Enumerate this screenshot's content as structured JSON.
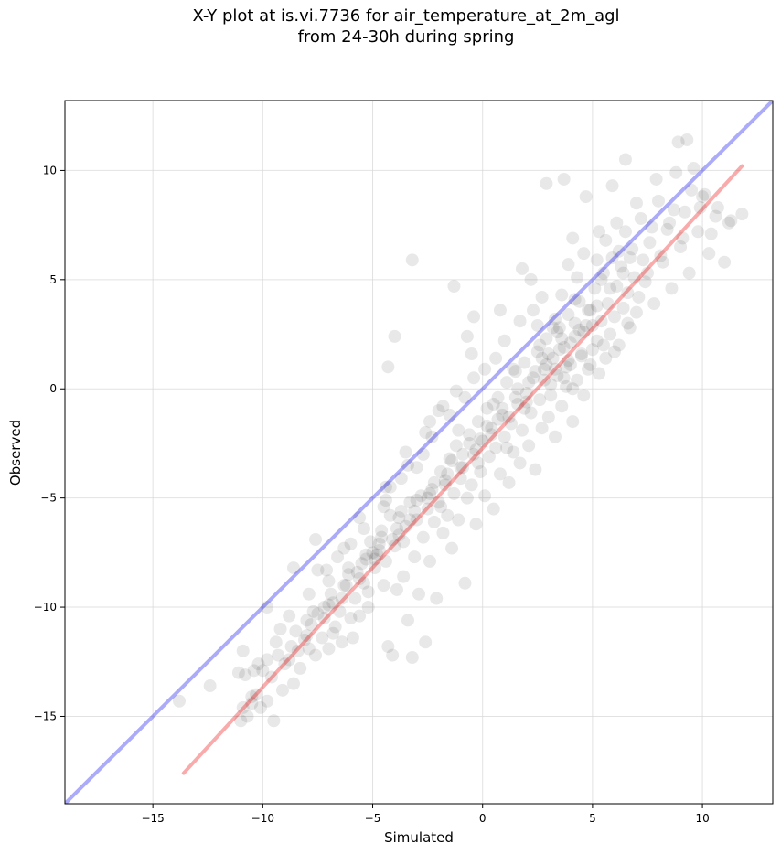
{
  "figure": {
    "title_line1": "X-Y plot at is.vi.7736 for air_temperature_at_2m_agl",
    "title_line2": "from 24-30h during spring"
  },
  "chart_data": {
    "type": "scatter",
    "title": "X-Y plot at is.vi.7736 for air_temperature_at_2m_agl\nfrom 24-30h during spring",
    "xlabel": "Simulated",
    "ylabel": "Observed",
    "xlim": [
      -19.0,
      13.2
    ],
    "ylim": [
      -19.0,
      13.2
    ],
    "xticks": [
      -15,
      -10,
      -5,
      0,
      5,
      10
    ],
    "yticks": [
      -15,
      -10,
      -5,
      0,
      5,
      10
    ],
    "xtick_labels": [
      "−15",
      "−10",
      "−5",
      "0",
      "5",
      "10"
    ],
    "ytick_labels": [
      "−15",
      "−10",
      "−5",
      "0",
      "5",
      "10"
    ],
    "grid": true,
    "colors": {
      "points": "#000000",
      "one_to_one": "#0000ee",
      "fit": "#ee0000"
    },
    "one_to_one_line": {
      "x": [
        -19.0,
        13.2
      ],
      "y": [
        -19.0,
        13.2
      ]
    },
    "fit_line": {
      "x": [
        -13.6,
        11.8
      ],
      "y": [
        -17.6,
        10.2
      ]
    },
    "points": [
      [
        -13.8,
        -14.3
      ],
      [
        -12.4,
        -13.6
      ],
      [
        -11.1,
        -13.0
      ],
      [
        -11.0,
        -15.2
      ],
      [
        -10.9,
        -14.6
      ],
      [
        -10.8,
        -13.1
      ],
      [
        -10.7,
        -15.0
      ],
      [
        -10.5,
        -14.4
      ],
      [
        -10.4,
        -12.9
      ],
      [
        -10.3,
        -14.0
      ],
      [
        -10.1,
        -14.6
      ],
      [
        -9.8,
        -14.3
      ],
      [
        -9.8,
        -12.4
      ],
      [
        -9.5,
        -15.2
      ],
      [
        -9.3,
        -12.2
      ],
      [
        -9.1,
        -13.8
      ],
      [
        -9.0,
        -12.6
      ],
      [
        -8.6,
        -13.5
      ],
      [
        -8.7,
        -11.8
      ],
      [
        -8.4,
        -12.0
      ],
      [
        -8.1,
        -11.5
      ],
      [
        -8.0,
        -10.6
      ],
      [
        -7.9,
        -11.9
      ],
      [
        -7.6,
        -12.2
      ],
      [
        -7.5,
        -10.3
      ],
      [
        -7.3,
        -11.4
      ],
      [
        -7.2,
        -10.0
      ],
      [
        -7.0,
        -11.9
      ],
      [
        -7.0,
        -8.8
      ],
      [
        -6.8,
        -9.8
      ],
      [
        -6.7,
        -10.9
      ],
      [
        -6.5,
        -10.2
      ],
      [
        -6.4,
        -11.6
      ],
      [
        -6.3,
        -9.0
      ],
      [
        -6.1,
        -8.2
      ],
      [
        -6.0,
        -10.5
      ],
      [
        -5.9,
        -11.4
      ],
      [
        -5.8,
        -9.6
      ],
      [
        -5.7,
        -8.4
      ],
      [
        -5.6,
        -10.4
      ],
      [
        -5.4,
        -8.9
      ],
      [
        -5.3,
        -7.8
      ],
      [
        -5.2,
        -10.0
      ],
      [
        -5.1,
        -7.0
      ],
      [
        -5.0,
        -7.5
      ],
      [
        -4.9,
        -8.2
      ],
      [
        -4.8,
        -7.6
      ],
      [
        -4.7,
        -7.4
      ],
      [
        -4.6,
        -6.5
      ],
      [
        -4.5,
        -9.0
      ],
      [
        -4.4,
        -7.9
      ],
      [
        -4.3,
        -11.8
      ],
      [
        -4.2,
        -5.8
      ],
      [
        -4.1,
        -12.2
      ],
      [
        -4.0,
        -7.2
      ],
      [
        -3.9,
        -9.2
      ],
      [
        -3.8,
        -6.7
      ],
      [
        -3.7,
        -5.6
      ],
      [
        -3.6,
        -8.6
      ],
      [
        -3.5,
        -6.3
      ],
      [
        -3.4,
        -10.6
      ],
      [
        -3.3,
        -5.2
      ],
      [
        -3.2,
        -12.3
      ],
      [
        -3.1,
        -7.7
      ],
      [
        -3.0,
        -6.0
      ],
      [
        -2.9,
        -9.4
      ],
      [
        -2.8,
        -4.9
      ],
      [
        -2.7,
        -6.8
      ],
      [
        -2.6,
        -11.6
      ],
      [
        -2.5,
        -5.5
      ],
      [
        -2.4,
        -7.9
      ],
      [
        -2.3,
        -4.6
      ],
      [
        -2.2,
        -6.1
      ],
      [
        -2.1,
        -9.6
      ],
      [
        -2.0,
        -5.2
      ],
      [
        -1.9,
        -3.8
      ],
      [
        -1.8,
        -6.6
      ],
      [
        -1.7,
        -4.4
      ],
      [
        -1.6,
        -5.8
      ],
      [
        -1.5,
        -3.2
      ],
      [
        -1.4,
        -7.3
      ],
      [
        -1.3,
        -4.8
      ],
      [
        -1.2,
        -2.6
      ],
      [
        -1.1,
        -6.0
      ],
      [
        -1.0,
        -4.1
      ],
      [
        -0.9,
        -3.6
      ],
      [
        -0.8,
        -8.9
      ],
      [
        -0.7,
        -5.0
      ],
      [
        -0.6,
        -2.1
      ],
      [
        -0.5,
        -4.4
      ],
      [
        -0.4,
        -3.0
      ],
      [
        -0.3,
        -6.2
      ],
      [
        -0.2,
        -1.5
      ],
      [
        -0.1,
        -3.8
      ],
      [
        0.0,
        -2.4
      ],
      [
        0.1,
        -4.9
      ],
      [
        0.2,
        -0.9
      ],
      [
        0.3,
        -3.1
      ],
      [
        0.4,
        -1.8
      ],
      [
        0.5,
        -5.5
      ],
      [
        0.6,
        -2.7
      ],
      [
        0.7,
        -0.4
      ],
      [
        0.8,
        -3.9
      ],
      [
        0.9,
        -1.2
      ],
      [
        1.0,
        -2.2
      ],
      [
        1.1,
        0.3
      ],
      [
        1.2,
        -4.3
      ],
      [
        1.3,
        -1.6
      ],
      [
        1.4,
        -2.9
      ],
      [
        1.5,
        0.8
      ],
      [
        1.6,
        -0.7
      ],
      [
        1.7,
        -3.4
      ],
      [
        1.8,
        -1.9
      ],
      [
        1.9,
        1.2
      ],
      [
        2.0,
        -0.2
      ],
      [
        2.1,
        -2.6
      ],
      [
        2.2,
        -1.1
      ],
      [
        2.3,
        0.5
      ],
      [
        2.4,
        -3.7
      ],
      [
        2.5,
        1.7
      ],
      [
        2.6,
        -0.5
      ],
      [
        2.7,
        -1.8
      ],
      [
        2.8,
        0.9
      ],
      [
        2.9,
        2.3
      ],
      [
        3.0,
        -1.3
      ],
      [
        3.1,
        0.2
      ],
      [
        3.2,
        1.4
      ],
      [
        3.3,
        -2.2
      ],
      [
        3.4,
        0.6
      ],
      [
        3.5,
        2.8
      ],
      [
        3.6,
        -0.8
      ],
      [
        3.7,
        1.9
      ],
      [
        3.8,
        0.1
      ],
      [
        3.9,
        3.4
      ],
      [
        4.0,
        1.1
      ],
      [
        4.1,
        -1.5
      ],
      [
        4.2,
        2.4
      ],
      [
        4.3,
        0.4
      ],
      [
        4.4,
        4.0
      ],
      [
        4.5,
        1.6
      ],
      [
        4.6,
        -0.3
      ],
      [
        4.7,
        2.9
      ],
      [
        4.8,
        0.9
      ],
      [
        4.9,
        3.6
      ],
      [
        5.0,
        1.8
      ],
      [
        5.1,
        4.6
      ],
      [
        5.2,
        2.2
      ],
      [
        5.3,
        0.7
      ],
      [
        5.4,
        3.1
      ],
      [
        5.5,
        5.3
      ],
      [
        5.6,
        1.4
      ],
      [
        5.7,
        3.9
      ],
      [
        5.8,
        2.5
      ],
      [
        5.9,
        6.0
      ],
      [
        6.0,
        3.3
      ],
      [
        6.1,
        4.7
      ],
      [
        6.2,
        2.0
      ],
      [
        6.3,
        5.6
      ],
      [
        6.4,
        3.7
      ],
      [
        6.5,
        7.2
      ],
      [
        6.6,
        4.4
      ],
      [
        6.7,
        2.8
      ],
      [
        6.8,
        6.4
      ],
      [
        6.9,
        5.1
      ],
      [
        7.0,
        3.5
      ],
      [
        7.2,
        7.8
      ],
      [
        7.4,
        4.9
      ],
      [
        7.6,
        6.7
      ],
      [
        7.8,
        3.9
      ],
      [
        8.0,
        8.6
      ],
      [
        8.2,
        5.8
      ],
      [
        8.4,
        7.3
      ],
      [
        8.6,
        4.6
      ],
      [
        8.8,
        9.9
      ],
      [
        9.0,
        6.5
      ],
      [
        9.2,
        8.1
      ],
      [
        9.4,
        5.3
      ],
      [
        9.6,
        10.1
      ],
      [
        9.8,
        7.2
      ],
      [
        10.0,
        8.8
      ],
      [
        10.3,
        6.2
      ],
      [
        10.6,
        7.9
      ],
      [
        11.0,
        5.8
      ],
      [
        11.3,
        7.7
      ],
      [
        11.8,
        8.0
      ],
      [
        -6.6,
        -7.7
      ],
      [
        -3.2,
        5.9
      ],
      [
        -4.0,
        2.4
      ],
      [
        -4.3,
        1.0
      ],
      [
        -1.3,
        4.7
      ],
      [
        -0.7,
        2.4
      ],
      [
        -0.4,
        3.3
      ],
      [
        1.8,
        5.5
      ],
      [
        2.9,
        9.4
      ],
      [
        3.7,
        9.6
      ],
      [
        4.7,
        8.8
      ],
      [
        6.5,
        10.5
      ],
      [
        8.9,
        11.3
      ],
      [
        9.3,
        11.4
      ],
      [
        10.7,
        8.3
      ],
      [
        7.7,
        7.4
      ],
      [
        5.9,
        9.3
      ],
      [
        4.1,
        6.9
      ],
      [
        2.2,
        5.0
      ],
      [
        0.8,
        3.6
      ],
      [
        -0.5,
        1.6
      ],
      [
        -1.8,
        -0.8
      ],
      [
        -2.4,
        -1.5
      ],
      [
        -3.5,
        -2.9
      ],
      [
        -4.4,
        -4.5
      ],
      [
        -5.6,
        -5.9
      ],
      [
        -7.6,
        -6.9
      ],
      [
        -8.6,
        -8.2
      ],
      [
        -9.8,
        -10.0
      ],
      [
        -10.9,
        -12.0
      ],
      [
        1.4,
        0.9
      ],
      [
        2.6,
        2.0
      ],
      [
        3.3,
        3.2
      ],
      [
        4.2,
        4.1
      ],
      [
        5.4,
        5.0
      ],
      [
        6.2,
        6.3
      ],
      [
        7.3,
        5.9
      ],
      [
        3.9,
        1.3
      ],
      [
        2.8,
        0.4
      ],
      [
        3.5,
        1.8
      ],
      [
        4.4,
        2.7
      ],
      [
        2.0,
        -0.6
      ],
      [
        1.2,
        -1.3
      ],
      [
        0.4,
        -2.1
      ],
      [
        -0.3,
        -2.8
      ],
      [
        -1.0,
        -3.6
      ],
      [
        -1.7,
        -4.2
      ],
      [
        -2.5,
        -5.0
      ],
      [
        -3.3,
        -6.0
      ],
      [
        -4.1,
        -6.9
      ],
      [
        -4.9,
        -7.8
      ],
      [
        -5.6,
        -8.7
      ],
      [
        -6.4,
        -9.6
      ],
      [
        -7.2,
        -10.5
      ],
      [
        -8.0,
        -11.3
      ],
      [
        -8.8,
        -12.4
      ],
      [
        -9.6,
        -13.2
      ],
      [
        -10.5,
        -14.1
      ],
      [
        3.0,
        1.6
      ],
      [
        3.6,
        2.3
      ],
      [
        4.2,
        3.0
      ],
      [
        4.8,
        3.6
      ],
      [
        2.4,
        0.8
      ],
      [
        1.6,
        0.0
      ],
      [
        0.9,
        -0.9
      ],
      [
        0.2,
        -1.7
      ],
      [
        -0.6,
        -2.5
      ],
      [
        -1.4,
        -3.3
      ],
      [
        -2.2,
        -4.3
      ],
      [
        -3.0,
        -5.1
      ],
      [
        -3.8,
        -5.9
      ],
      [
        -4.6,
        -6.8
      ],
      [
        -5.3,
        -7.6
      ],
      [
        -6.1,
        -8.5
      ],
      [
        -6.9,
        -9.4
      ],
      [
        -7.7,
        -10.2
      ],
      [
        -8.5,
        -11.1
      ],
      [
        3.3,
        0.9
      ],
      [
        4.0,
        2.1
      ],
      [
        4.6,
        2.6
      ],
      [
        5.2,
        3.8
      ],
      [
        5.8,
        4.6
      ],
      [
        6.4,
        5.3
      ],
      [
        2.7,
        1.4
      ],
      [
        2.1,
        0.3
      ],
      [
        1.5,
        -0.4
      ],
      [
        0.7,
        -1.4
      ],
      [
        -0.1,
        -2.3
      ],
      [
        -0.9,
        -3.0
      ],
      [
        -1.6,
        -3.9
      ],
      [
        -2.4,
        -4.8
      ],
      [
        -3.1,
        -5.6
      ],
      [
        -3.9,
        -6.4
      ],
      [
        -4.7,
        -7.1
      ],
      [
        -5.5,
        -8.0
      ],
      [
        -6.2,
        -9.0
      ],
      [
        -7.0,
        -9.9
      ],
      [
        -7.8,
        -10.8
      ],
      [
        3.8,
        1.0
      ],
      [
        3.4,
        2.6
      ],
      [
        4.5,
        1.5
      ],
      [
        5.0,
        2.9
      ],
      [
        2.5,
        2.9
      ],
      [
        3.1,
        -0.3
      ],
      [
        1.9,
        -0.9
      ],
      [
        1.1,
        -2.7
      ],
      [
        0.5,
        -0.7
      ],
      [
        -0.2,
        -3.4
      ],
      [
        -1.1,
        -1.9
      ],
      [
        -1.9,
        -5.4
      ],
      [
        -2.7,
        -3.0
      ],
      [
        -3.6,
        -7.0
      ],
      [
        -4.4,
        -5.1
      ],
      [
        -5.2,
        -9.3
      ],
      [
        -6.0,
        -7.1
      ],
      [
        -6.8,
        -11.2
      ],
      [
        -7.5,
        -8.3
      ],
      [
        -8.3,
        -12.8
      ],
      [
        -9.2,
        -11.0
      ],
      [
        -10.2,
        -12.6
      ],
      [
        5.6,
        6.8
      ],
      [
        6.1,
        7.6
      ],
      [
        7.0,
        8.5
      ],
      [
        7.9,
        9.6
      ],
      [
        8.5,
        7.6
      ],
      [
        9.1,
        6.9
      ],
      [
        9.9,
        8.3
      ],
      [
        10.4,
        7.1
      ],
      [
        6.7,
        6.0
      ],
      [
        5.2,
        5.9
      ],
      [
        4.3,
        5.1
      ],
      [
        3.6,
        4.3
      ],
      [
        2.3,
        3.6
      ],
      [
        1.0,
        2.2
      ],
      [
        0.1,
        0.9
      ],
      [
        -0.8,
        -0.4
      ],
      [
        -1.5,
        -1.2
      ],
      [
        -2.3,
        -2.2
      ],
      [
        -3.0,
        -3.6
      ],
      [
        -3.7,
        -4.1
      ],
      [
        -4.5,
        -5.4
      ],
      [
        -5.4,
        -6.4
      ],
      [
        -6.3,
        -7.3
      ],
      [
        -7.1,
        -8.3
      ],
      [
        -7.9,
        -9.4
      ],
      [
        -8.8,
        -10.4
      ],
      [
        -9.4,
        -11.6
      ],
      [
        -10.0,
        -12.9
      ],
      [
        3.2,
        2.8
      ],
      [
        2.9,
        1.1
      ],
      [
        3.7,
        0.5
      ],
      [
        4.1,
        0.0
      ],
      [
        4.9,
        1.1
      ],
      [
        5.5,
        2.0
      ],
      [
        6.0,
        1.7
      ],
      [
        6.6,
        3.0
      ],
      [
        7.1,
        4.2
      ],
      [
        7.5,
        5.3
      ],
      [
        8.1,
        6.1
      ],
      [
        8.7,
        8.2
      ],
      [
        9.5,
        9.1
      ],
      [
        10.1,
        8.9
      ],
      [
        11.2,
        7.6
      ],
      [
        5.3,
        7.2
      ],
      [
        4.6,
        6.2
      ],
      [
        3.9,
        5.7
      ],
      [
        2.7,
        4.2
      ],
      [
        1.7,
        3.1
      ],
      [
        0.6,
        1.4
      ],
      [
        -0.4,
        0.5
      ],
      [
        -1.2,
        -0.1
      ],
      [
        -2.0,
        -1.0
      ],
      [
        -2.6,
        -2.0
      ],
      [
        -3.4,
        -3.5
      ],
      [
        -4.2,
        -4.5
      ]
    ]
  }
}
